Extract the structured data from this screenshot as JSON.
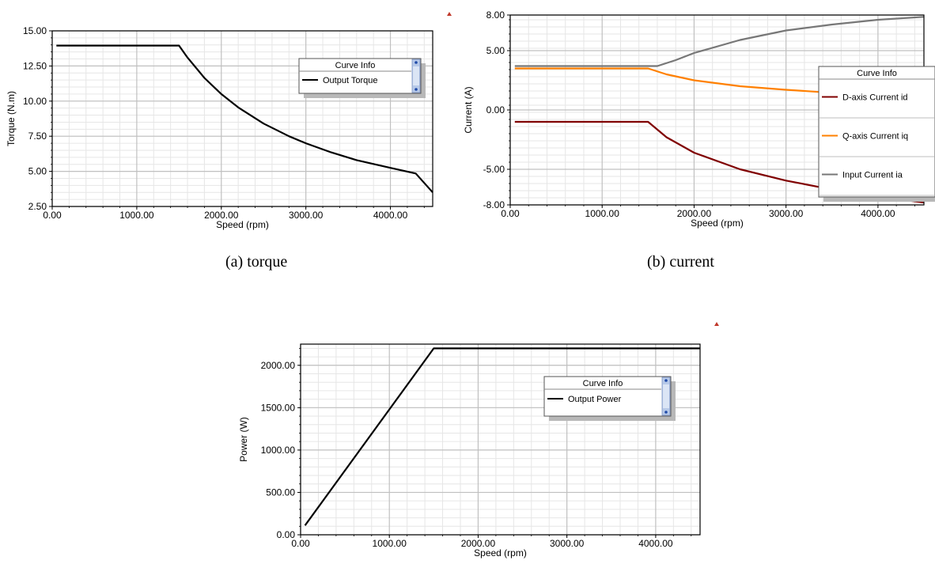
{
  "captions": {
    "a": "(a) torque",
    "b": "(b) current"
  },
  "chart_data": [
    {
      "id": "torque",
      "type": "line",
      "xlabel": "Speed (rpm)",
      "ylabel": "Torque (N.m)",
      "xlim": [
        0,
        4500
      ],
      "ylim": [
        2.5,
        15
      ],
      "x_ticks": [
        "0.00",
        "1000.00",
        "2000.00",
        "3000.00",
        "4000.00"
      ],
      "y_ticks": [
        "2.50",
        "5.00",
        "7.50",
        "10.00",
        "12.50",
        "15.00"
      ],
      "grid": true,
      "legend": {
        "title": "Curve Info",
        "placement": "top-right"
      },
      "series": [
        {
          "name": "Output Torque",
          "color": "#000000",
          "points": [
            [
              50,
              13.95
            ],
            [
              1500,
              13.95
            ],
            [
              1600,
              13.1
            ],
            [
              1800,
              11.65
            ],
            [
              2000,
              10.5
            ],
            [
              2200,
              9.55
            ],
            [
              2500,
              8.4
            ],
            [
              2800,
              7.5
            ],
            [
              3000,
              7.0
            ],
            [
              3300,
              6.35
            ],
            [
              3600,
              5.8
            ],
            [
              4000,
              5.25
            ],
            [
              4300,
              4.85
            ],
            [
              4500,
              3.5
            ]
          ]
        }
      ]
    },
    {
      "id": "current",
      "type": "line",
      "xlabel": "Speed (rpm)",
      "ylabel": "Current (A)",
      "xlim": [
        0,
        4500
      ],
      "ylim": [
        -8,
        8
      ],
      "x_ticks": [
        "0.00",
        "1000.00",
        "2000.00",
        "3000.00",
        "4000.00"
      ],
      "y_ticks": [
        "-8.00",
        "-5.00",
        "0.00",
        "5.00",
        "8.00"
      ],
      "y_tick_values": [
        -8,
        -5,
        0,
        5,
        8
      ],
      "grid": true,
      "legend": {
        "title": "Curve Info",
        "placement": "right"
      },
      "series": [
        {
          "name": "D-axis Current id",
          "color": "#800000",
          "points": [
            [
              50,
              -1.0
            ],
            [
              1500,
              -1.0
            ],
            [
              1700,
              -2.3
            ],
            [
              2000,
              -3.6
            ],
            [
              2500,
              -5.0
            ],
            [
              3000,
              -5.95
            ],
            [
              3500,
              -6.7
            ],
            [
              4000,
              -7.3
            ],
            [
              4500,
              -7.8
            ]
          ]
        },
        {
          "name": "Q-axis Current iq",
          "color": "#ff8000",
          "points": [
            [
              50,
              3.5
            ],
            [
              1500,
              3.5
            ],
            [
              1700,
              3.0
            ],
            [
              2000,
              2.5
            ],
            [
              2500,
              2.0
            ],
            [
              3000,
              1.7
            ],
            [
              3500,
              1.45
            ],
            [
              4000,
              1.3
            ],
            [
              4500,
              1.15
            ]
          ]
        },
        {
          "name": "Input Current ia",
          "color": "#777777",
          "points": [
            [
              50,
              3.7
            ],
            [
              1600,
              3.7
            ],
            [
              1800,
              4.2
            ],
            [
              2000,
              4.8
            ],
            [
              2500,
              5.9
            ],
            [
              3000,
              6.7
            ],
            [
              3500,
              7.2
            ],
            [
              4000,
              7.6
            ],
            [
              4500,
              7.85
            ]
          ]
        }
      ]
    },
    {
      "id": "power",
      "type": "line",
      "xlabel": "Speed (rpm)",
      "ylabel": "Power (W)",
      "xlim": [
        0,
        4500
      ],
      "ylim": [
        0,
        2250
      ],
      "x_ticks": [
        "0.00",
        "1000.00",
        "2000.00",
        "3000.00",
        "4000.00"
      ],
      "y_ticks": [
        "0.00",
        "500.00",
        "1000.00",
        "1500.00",
        "2000.00"
      ],
      "grid": true,
      "legend": {
        "title": "Curve Info",
        "placement": "top-right"
      },
      "series": [
        {
          "name": "Output Power",
          "color": "#000000",
          "points": [
            [
              50,
              110
            ],
            [
              1500,
              2200
            ],
            [
              4500,
              2200
            ]
          ]
        }
      ]
    }
  ]
}
